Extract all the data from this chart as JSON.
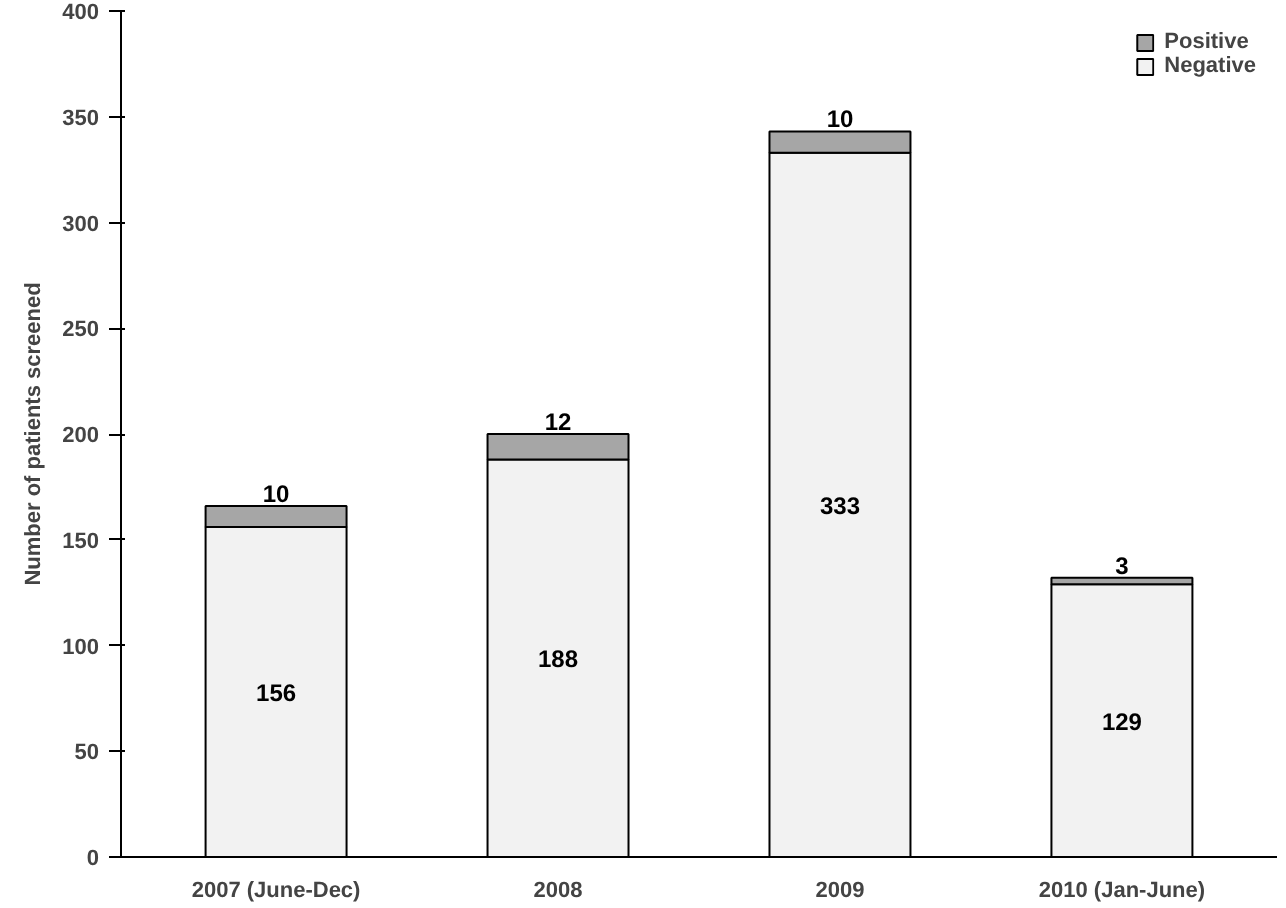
{
  "chart_data": {
    "type": "bar",
    "stacked": true,
    "ylabel": "Number of patients screened",
    "categories": [
      "2007 (June-Dec)",
      "2008",
      "2009",
      "2010 (Jan-June)"
    ],
    "series": [
      {
        "name": "Negative",
        "color": "#f2f2f2",
        "values": [
          156,
          188,
          333,
          129
        ]
      },
      {
        "name": "Positive",
        "color": "#a6a6a6",
        "values": [
          10,
          12,
          10,
          3
        ]
      }
    ],
    "ylim": [
      0,
      400
    ],
    "yticks": [
      0,
      50,
      100,
      150,
      200,
      250,
      300,
      350,
      400
    ],
    "data_labels": true,
    "legend": "top right",
    "grid": false
  }
}
